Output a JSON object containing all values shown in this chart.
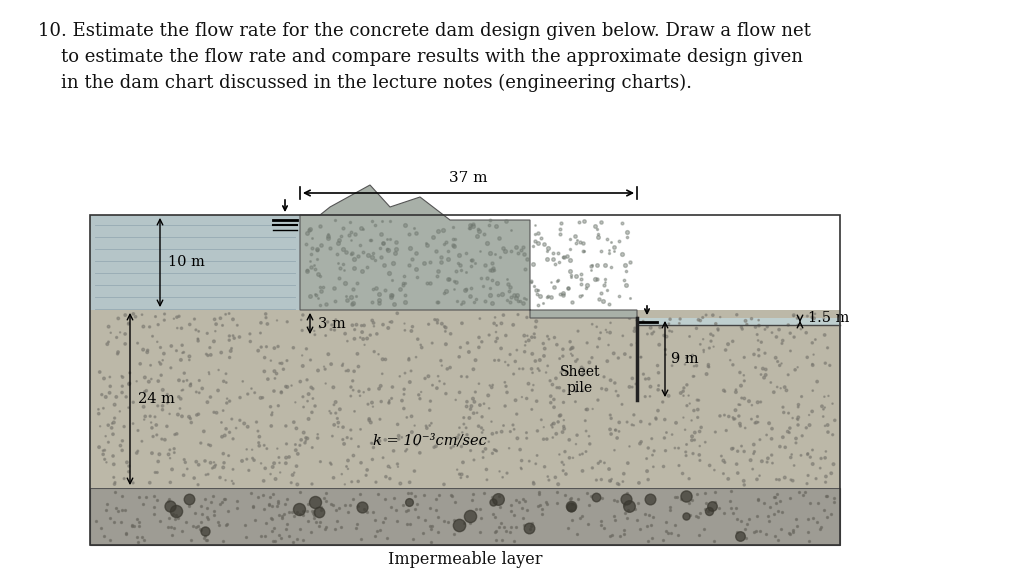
{
  "title_line1": "10. Estimate the flow rate for the concrete dam design given below. Draw a flow net",
  "title_line2": "    to estimate the flow rate and compare results with the approximate design given",
  "title_line3": "    in the dam chart discussed in the lecture notes (engineering charts).",
  "impermeable_label": "Impermeable layer",
  "sheet_pile_label": "Sheet\npile",
  "k_label": "k = 10⁻³cm/sec",
  "dim_37m": "37 m",
  "dim_10m": "10 m",
  "dim_24m": "24 m",
  "dim_3m": "3 m",
  "dim_9m": "9 m",
  "dim_15m": "1.5 m",
  "bg_color": "#ffffff",
  "water_left_color": "#b5c5c8",
  "water_right_color": "#bfcfcf",
  "soil_color": "#b8b5a5",
  "imp_color": "#9a9890",
  "dam_color": "#a8b0a8",
  "title_fontsize": 13,
  "label_fontsize": 10
}
